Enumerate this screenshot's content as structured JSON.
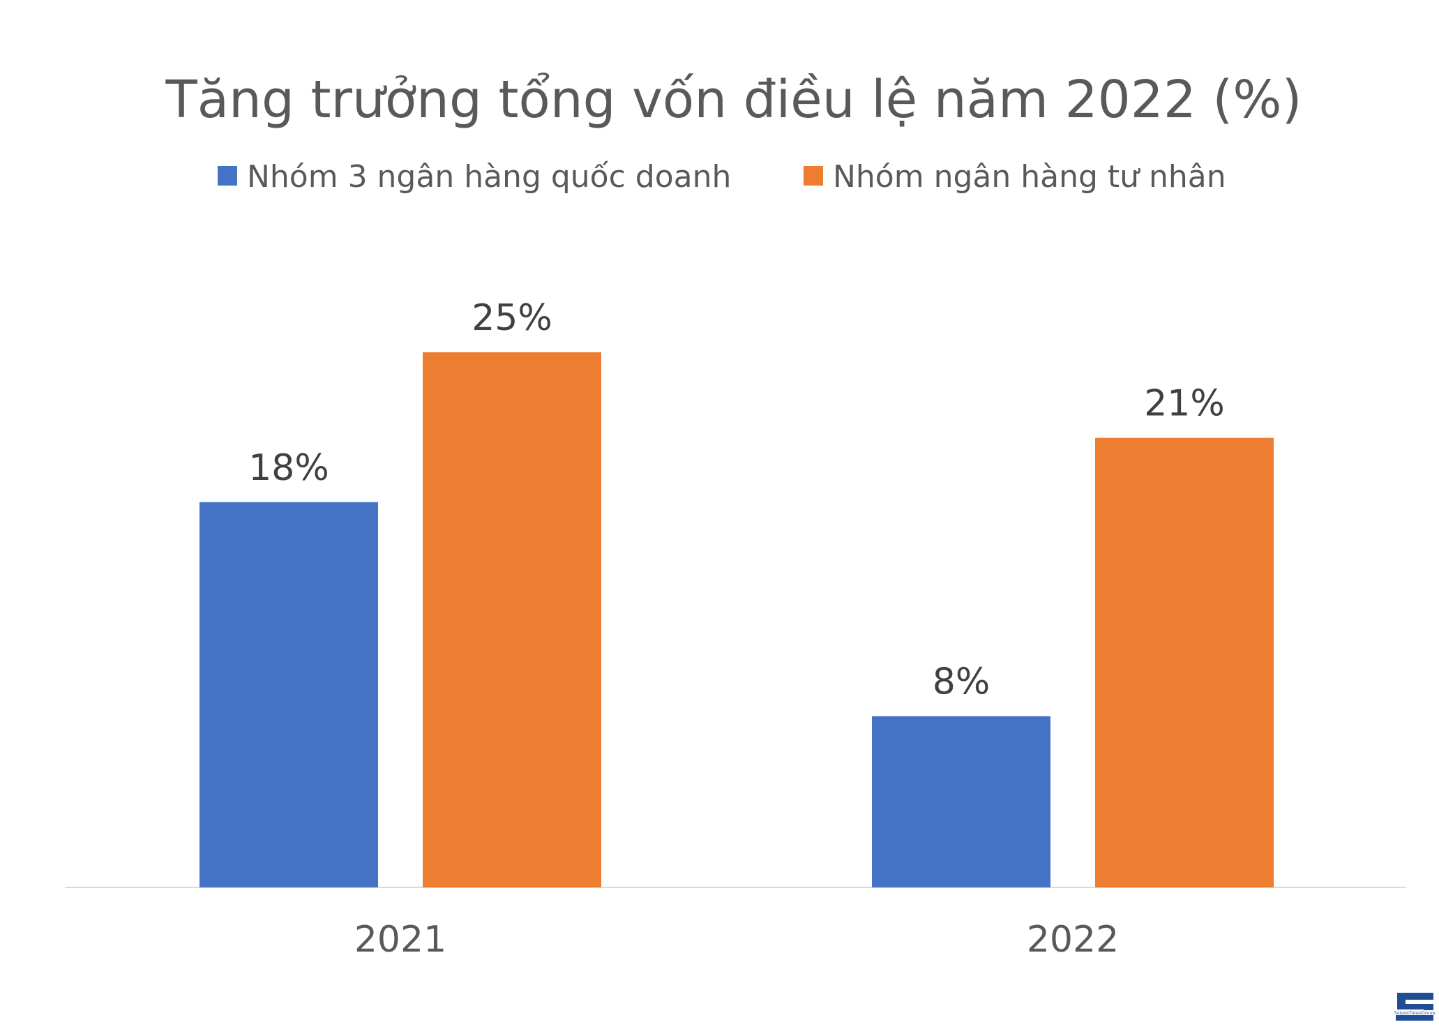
{
  "chart_data": {
    "type": "bar",
    "title": "Tăng trưởng tổng vốn điều lệ năm 2022 (%)",
    "xlabel": "",
    "ylabel": "",
    "categories": [
      "2021",
      "2022"
    ],
    "series": [
      {
        "name": "Nhóm 3 ngân hàng quốc doanh",
        "values": [
          18,
          8
        ],
        "labels": [
          "18%",
          "8%"
        ],
        "color": "#4472C4"
      },
      {
        "name": "Nhóm ngân hàng tư nhân",
        "values": [
          25,
          21
        ],
        "labels": [
          "25%",
          "21%"
        ],
        "color": "#ED7D31"
      }
    ],
    "ylim": [
      0,
      25
    ],
    "unit": "%",
    "grid": false,
    "legend_position": "top",
    "text_color": "#595959",
    "label_color": "#404040",
    "axis_color": "#D9D9D9"
  },
  "logo": {
    "text": "SaigonTimesGroup",
    "color": "#1F4E96"
  }
}
